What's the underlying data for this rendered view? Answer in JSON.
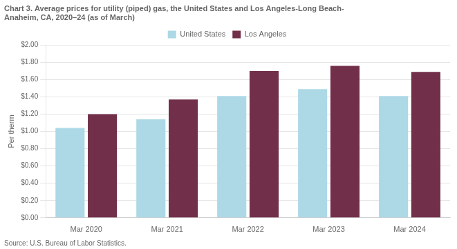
{
  "chart_data": {
    "type": "bar",
    "title": [
      "Chart 3. Average prices for utility (piped) gas, the United States and Los Angeles-Long Beach-",
      "Anaheim, CA, 2020–24 (as of March)"
    ],
    "y_label": "Per therm",
    "annotations": [
      "Source: U.S. Bureau of Labor Statistics."
    ],
    "categories": [
      "Mar 2020",
      "Mar 2021",
      "Mar 2022",
      "Mar 2023",
      "Mar 2024"
    ],
    "series": [
      {
        "name": "United States",
        "color": "#add8e6",
        "values": [
          1.04,
          1.14,
          1.41,
          1.49,
          1.41
        ]
      },
      {
        "name": "Los Angeles",
        "color": "#722F4A",
        "values": [
          1.2,
          1.37,
          1.7,
          1.76,
          1.69
        ]
      }
    ],
    "ylim": [
      0.0,
      2.0
    ],
    "yticks": [
      {
        "value": 0.0,
        "label": "$0.00"
      },
      {
        "value": 0.2,
        "label": "$0.20"
      },
      {
        "value": 0.4,
        "label": "$0.40"
      },
      {
        "value": 0.6,
        "label": "$0.60"
      },
      {
        "value": 0.8,
        "label": "$0.80"
      },
      {
        "value": 1.0,
        "label": "$1.00"
      },
      {
        "value": 1.2,
        "label": "$1.20"
      },
      {
        "value": 1.4,
        "label": "$1.40"
      },
      {
        "value": 1.6,
        "label": "$1.60"
      },
      {
        "value": 1.8,
        "label": "$1.80"
      },
      {
        "value": 2.0,
        "label": "$2.00"
      }
    ],
    "grid": true,
    "legend": "top"
  }
}
